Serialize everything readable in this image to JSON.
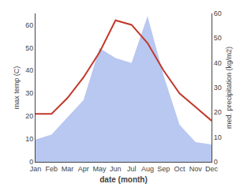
{
  "chart_data": {
    "type": "line",
    "categories": [
      "Jan",
      "Feb",
      "Mar",
      "Apr",
      "May",
      "Jun",
      "Jul",
      "Aug",
      "Sep",
      "Oct",
      "Nov",
      "Dec"
    ],
    "xlabel": "date (month)",
    "ylabel": "max temp (C)",
    "y2label": "med. precipitation (kg/m2)",
    "series": [
      {
        "type": "area",
        "axis": "y2",
        "color": "#b8c8f0",
        "values": [
          9,
          11,
          18,
          25,
          46,
          42,
          40,
          59,
          35,
          15,
          8,
          7
        ]
      },
      {
        "type": "line",
        "color": "#c0392b",
        "values": [
          21,
          21,
          28,
          37,
          48,
          62,
          60,
          52,
          40,
          30,
          24,
          18
        ]
      }
    ],
    "ylim": [
      0,
      65
    ],
    "yticks": [
      0,
      10,
      20,
      30,
      40,
      50,
      60
    ],
    "y2lim": [
      0,
      60
    ],
    "y2ticks": [
      0,
      10,
      20,
      30,
      40,
      50,
      60
    ],
    "grid": false
  }
}
